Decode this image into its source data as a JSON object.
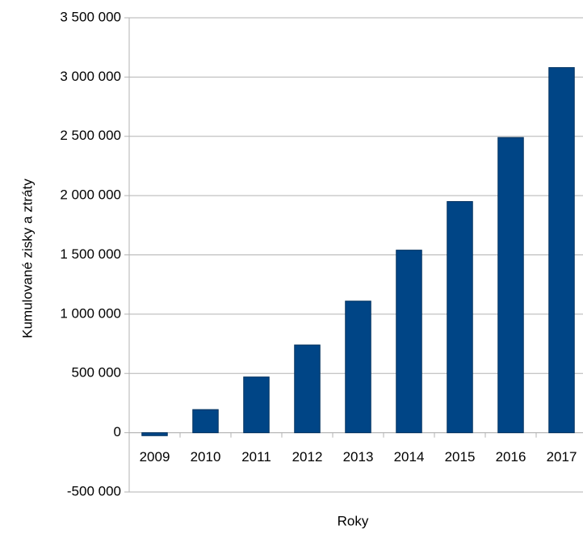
{
  "chart_data": {
    "type": "bar",
    "y_label": "Kumulované zisky a ztráty",
    "x_label": "Roky",
    "categories": [
      "2009",
      "2010",
      "2011",
      "2012",
      "2013",
      "2014",
      "2015",
      "2016",
      "2017"
    ],
    "values": [
      -25000,
      195000,
      470000,
      740000,
      1110000,
      1540000,
      1950000,
      2490000,
      3080000
    ],
    "color": "#004586",
    "ylim": [
      -500000,
      3500000
    ],
    "yticks": [
      {
        "value": -500000,
        "label": "-500 000"
      },
      0,
      {
        "value": 500000,
        "label": "500 000"
      },
      {
        "value": 1000000,
        "label": "1 000 000"
      },
      {
        "value": 1500000,
        "label": "1 500 000"
      },
      {
        "value": 2000000,
        "label": "2 000 000"
      },
      {
        "value": 2500000,
        "label": "2 500 000"
      },
      {
        "value": 3000000,
        "label": "3 000 000"
      },
      {
        "value": 3500000,
        "label": "3 500 000"
      }
    ],
    "grid": true
  }
}
